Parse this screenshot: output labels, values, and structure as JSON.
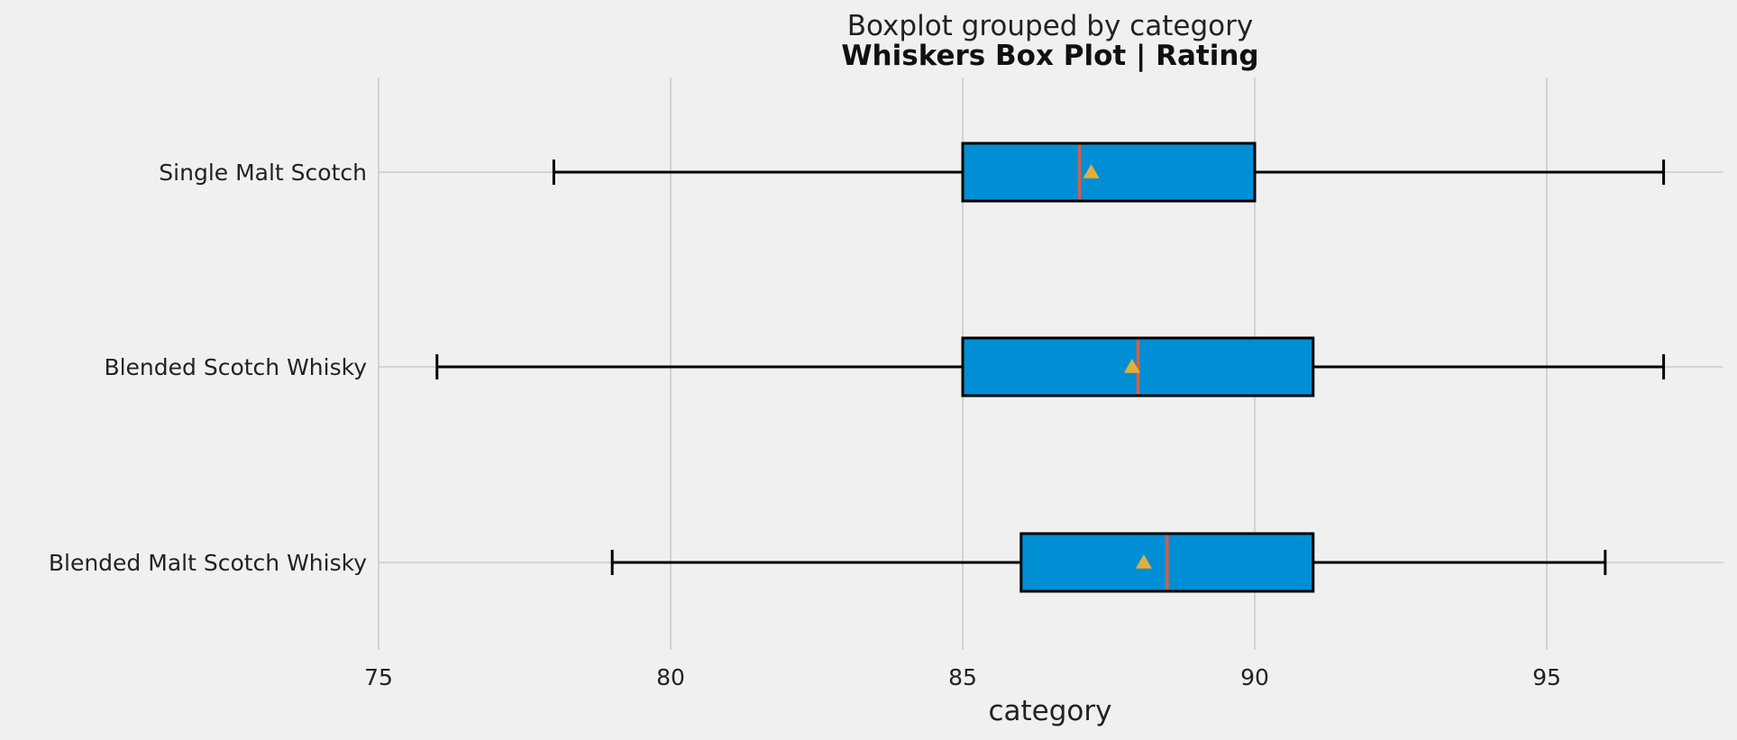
{
  "chart_data": {
    "type": "boxplot",
    "orientation": "horizontal",
    "suptitle": "Boxplot grouped by category",
    "title": "Whiskers Box Plot | Rating",
    "xlabel": "category",
    "ylabel": "",
    "xlim": [
      70,
      98
    ],
    "xticks": [
      75,
      80,
      85,
      90,
      95
    ],
    "grid": true,
    "categories": [
      "Single Malt Scotch",
      "Blended Scotch Whisky",
      "Blended Malt Scotch Whisky"
    ],
    "boxes": [
      {
        "category": "Single Malt Scotch",
        "whisker_low": 78,
        "q1": 85,
        "median": 87,
        "q3": 90,
        "whisker_high": 97,
        "mean": 87.2
      },
      {
        "category": "Blended Scotch Whisky",
        "whisker_low": 76,
        "q1": 85,
        "median": 88,
        "q3": 91,
        "whisker_high": 97,
        "mean": 87.9
      },
      {
        "category": "Blended Malt Scotch Whisky",
        "whisker_low": 79,
        "q1": 86,
        "median": 88.5,
        "q3": 91,
        "whisker_high": 96,
        "mean": 88.1
      }
    ],
    "colors": {
      "background": "#f0f0f0",
      "box_fill": "#008fd5",
      "median": "#d0604c",
      "mean_marker": "#e5ae38",
      "grid": "#cbcbcb"
    }
  }
}
